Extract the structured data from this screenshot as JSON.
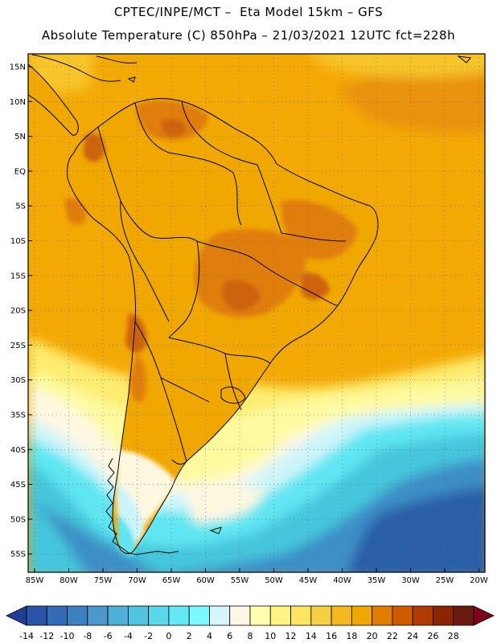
{
  "header": {
    "line1": "CPTEC/INPE/MCT –  Eta Model 15km – GFS",
    "line2": "Absolute Temperature (C) 850hPa – 21/03/2021 12UTC fct=228h"
  },
  "axes": {
    "lat_labels": [
      "15N",
      "10N",
      "5N",
      "EQ",
      "5S",
      "10S",
      "15S",
      "20S",
      "25S",
      "30S",
      "35S",
      "40S",
      "45S",
      "50S",
      "55S"
    ],
    "lon_labels": [
      "85W",
      "80W",
      "75W",
      "70W",
      "65W",
      "60W",
      "55W",
      "50W",
      "45W",
      "40W",
      "35W",
      "30W",
      "25W",
      "20W"
    ]
  },
  "colorbar": {
    "labels": [
      "-14",
      "-12",
      "-10",
      "-8",
      "-6",
      "-4",
      "-2",
      "0",
      "2",
      "4",
      "6",
      "8",
      "10",
      "12",
      "14",
      "16",
      "18",
      "20",
      "22",
      "24",
      "26",
      "28"
    ],
    "colors": [
      "#1f3d94",
      "#2a54a6",
      "#336bb5",
      "#3e81c1",
      "#4a98cc",
      "#4fb0d8",
      "#52c4e2",
      "#5ad7ec",
      "#63e8f4",
      "#7df8fb",
      "#d6f6fb",
      "#fff8e6",
      "#ffffb0",
      "#fff382",
      "#fde564",
      "#f7cf45",
      "#f5b81e",
      "#f0a800",
      "#e17d00",
      "#cf5a00",
      "#b03a00",
      "#8b2500",
      "#6b1a10",
      "#800020"
    ]
  },
  "colors": {
    "ocean_warm": "#f3a904",
    "ocean_orange": "#e8920a",
    "land_hot": "#e07e10",
    "land_hotter": "#cc6410",
    "pale_yellow": "#fffaa0",
    "cream": "#fff8e1",
    "light_cyan": "#cdf5f9",
    "cyan": "#5fe6f2",
    "mid_cyan": "#45c6dc",
    "blue": "#3e8fc6",
    "deep_blue": "#2b5fa8"
  }
}
